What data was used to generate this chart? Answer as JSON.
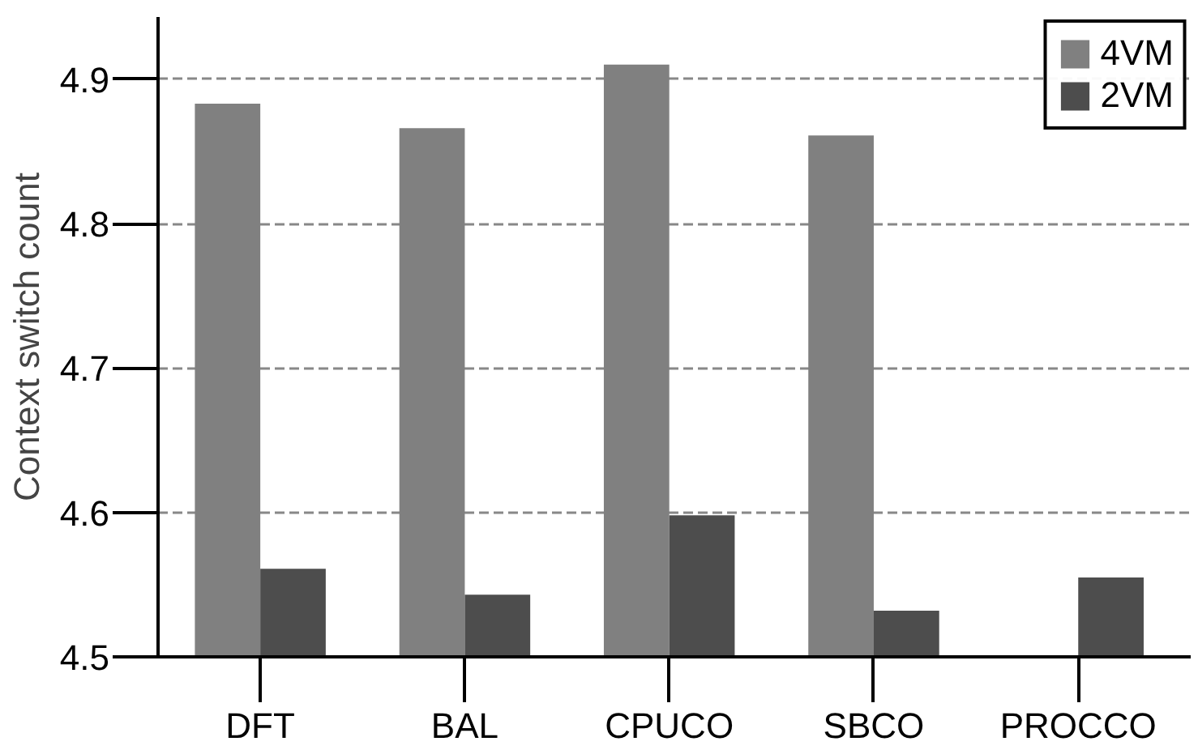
{
  "chart_data": {
    "type": "bar",
    "ylabel": "Context switch count",
    "categories": [
      "DFT",
      "BAL",
      "CPUCO",
      "SBCO",
      "PROCCO"
    ],
    "series": [
      {
        "name": "4VM",
        "color": "#808080",
        "values": [
          4.883,
          4.866,
          4.91,
          4.861,
          null
        ]
      },
      {
        "name": "2VM",
        "color": "#4d4d4d",
        "values": [
          4.561,
          4.543,
          4.598,
          4.532,
          4.555
        ]
      }
    ],
    "ylim": [
      4.5,
      4.943
    ],
    "yticks": [
      4.5,
      4.6,
      4.7,
      4.8,
      4.9
    ],
    "grid": "y",
    "legend": "top right"
  }
}
